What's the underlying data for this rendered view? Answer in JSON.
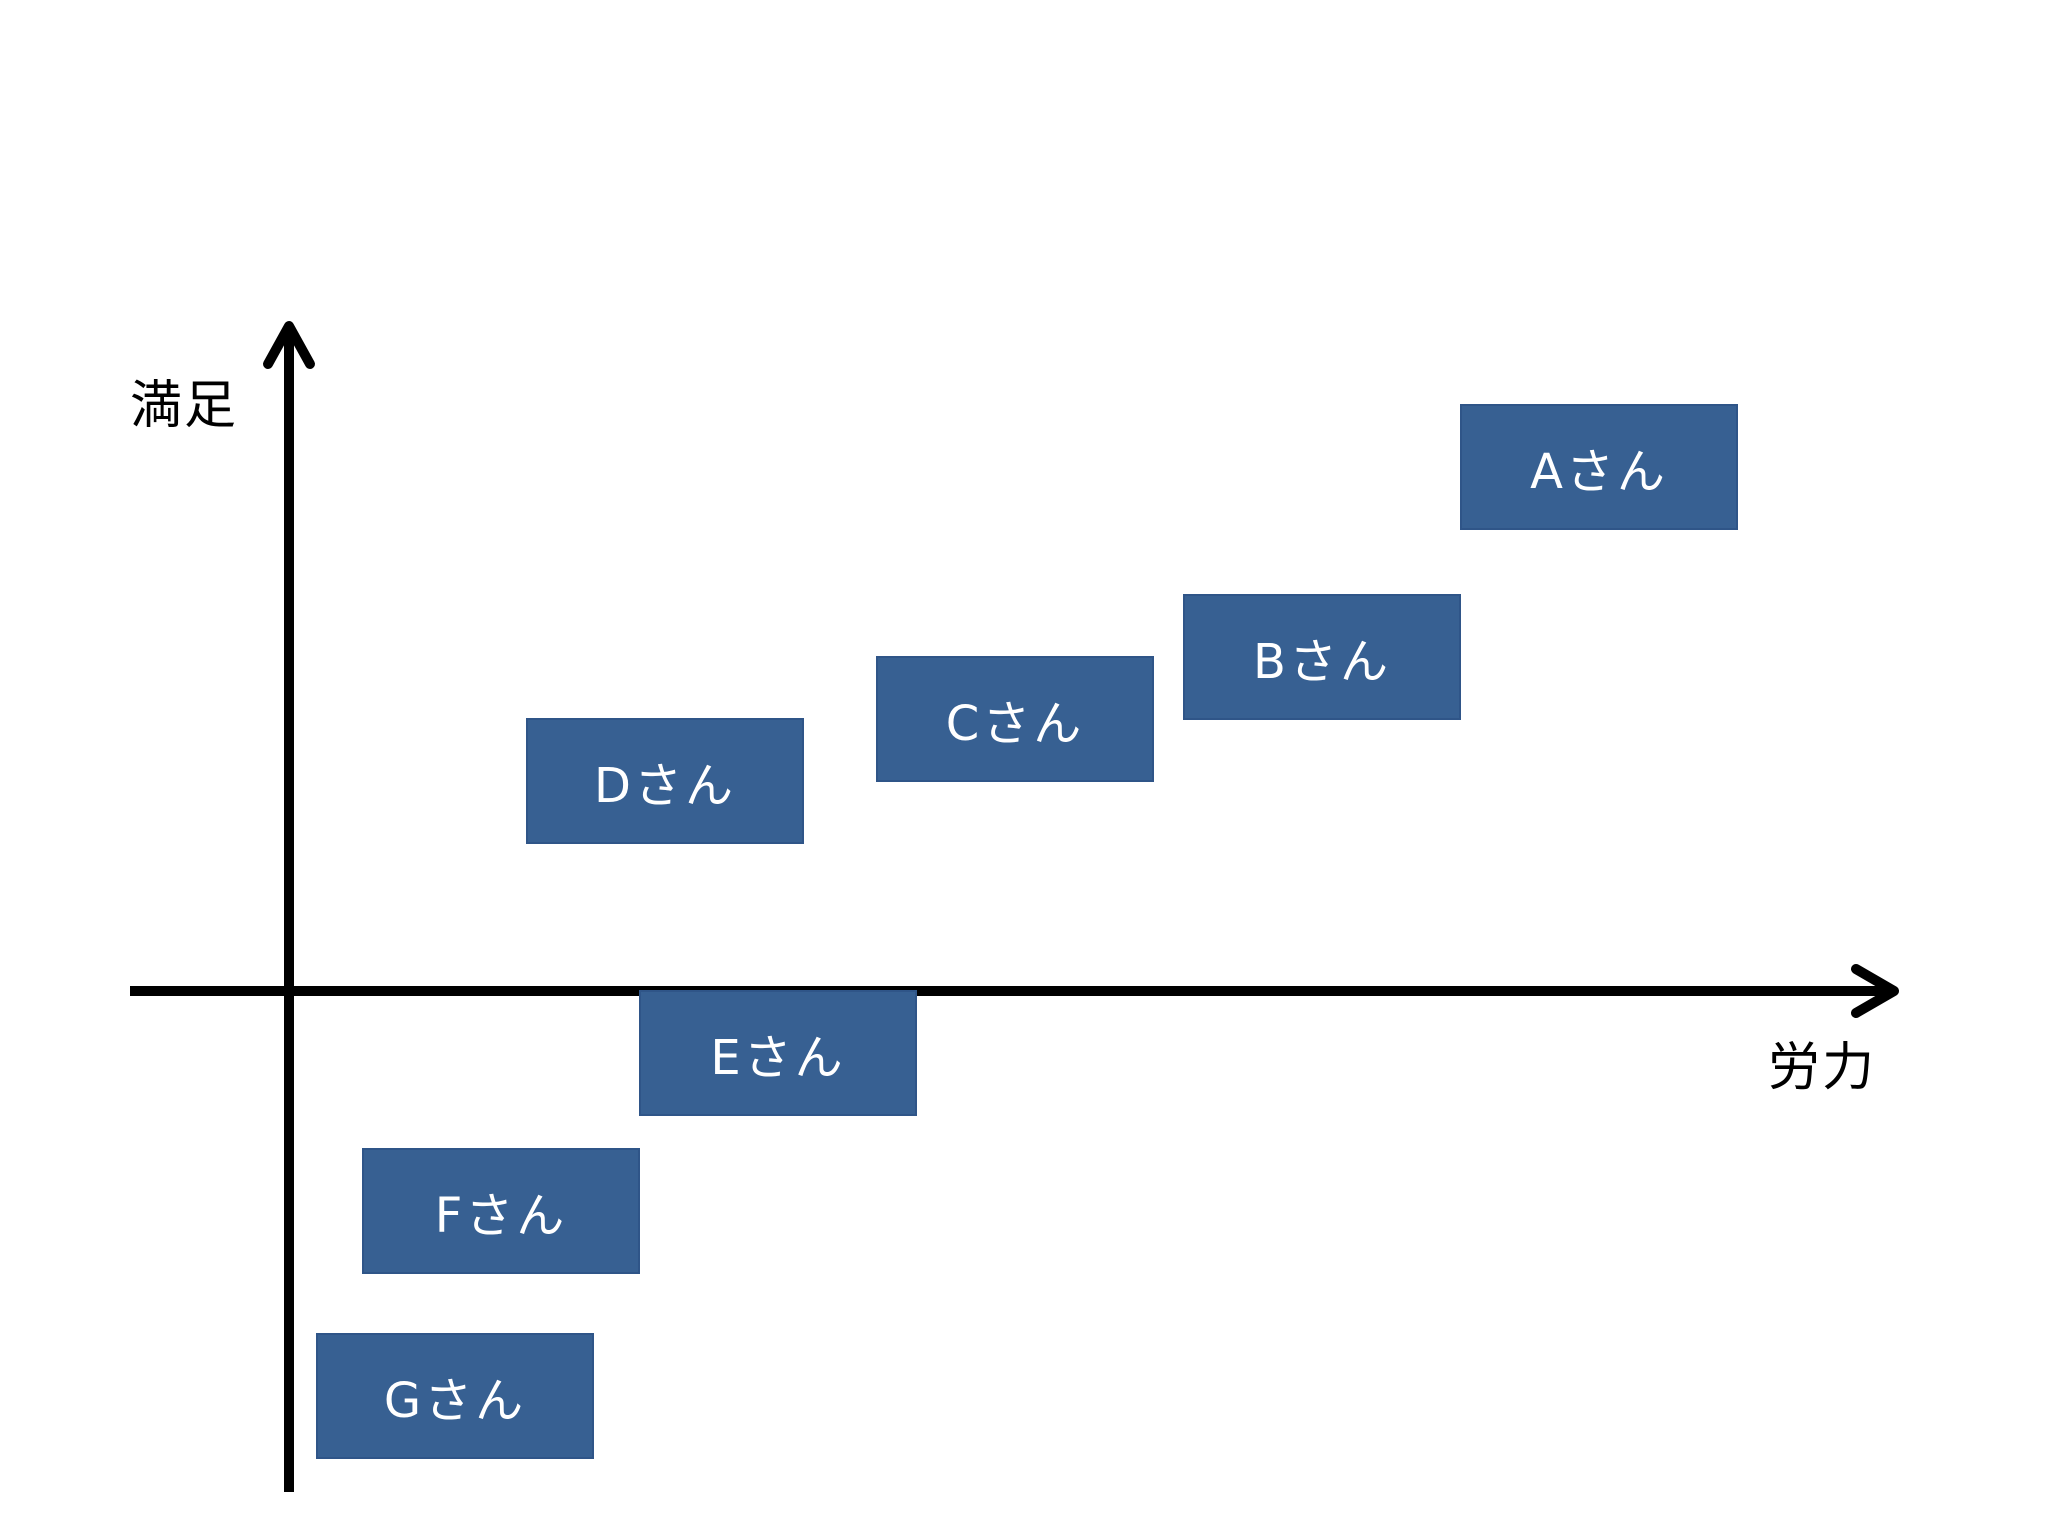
{
  "axes": {
    "y_label": "満足",
    "x_label": "労力"
  },
  "people": [
    {
      "id": "a",
      "label": "Aさん"
    },
    {
      "id": "b",
      "label": "Bさん"
    },
    {
      "id": "c",
      "label": "Cさん"
    },
    {
      "id": "d",
      "label": "Dさん"
    },
    {
      "id": "e",
      "label": "Eさん"
    },
    {
      "id": "f",
      "label": "Fさん"
    },
    {
      "id": "g",
      "label": "Gさん"
    }
  ],
  "colors": {
    "box_fill": "#376092",
    "box_text": "#ffffff",
    "axis": "#000000"
  }
}
